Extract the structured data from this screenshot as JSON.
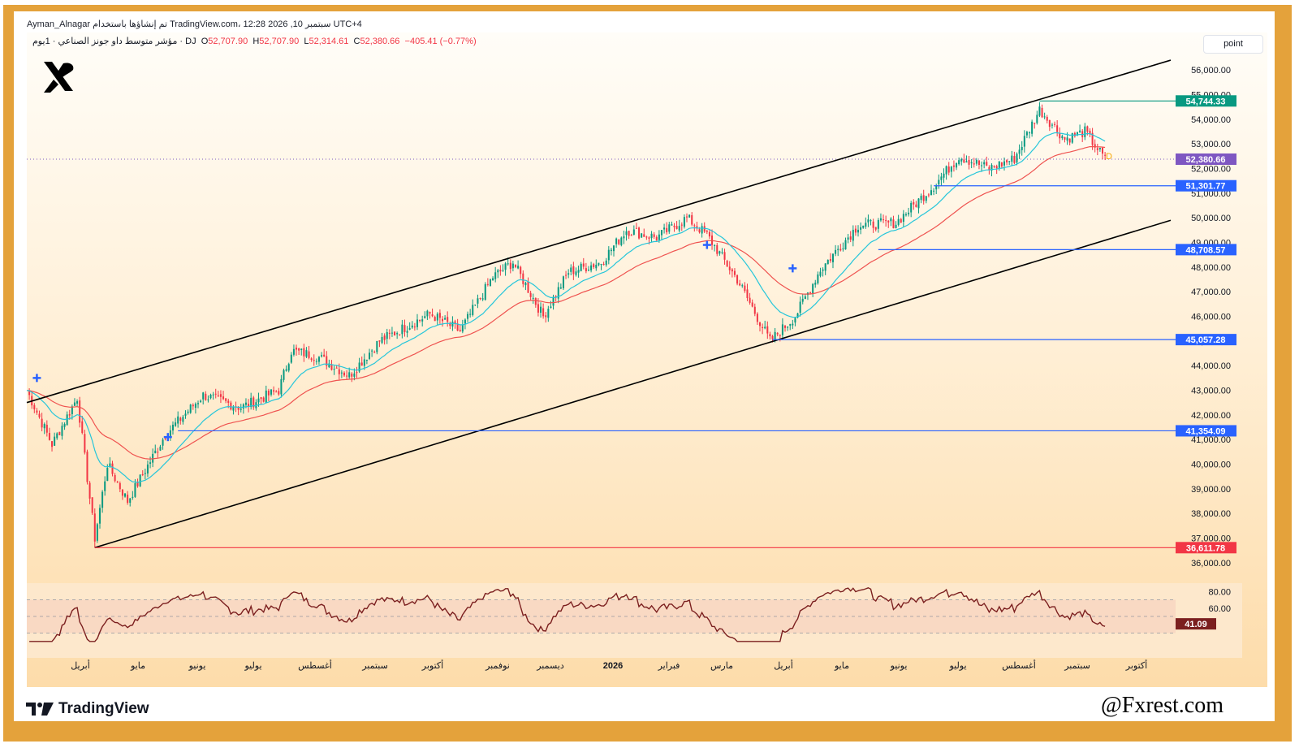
{
  "header": {
    "line1": "Ayman_Alnagar تم إنشاؤها باستخدام TradingView.com، 12:28 2026 ,10 سبتمبر UTC+4",
    "symbol": "مؤشر متوسط داو جونز الصناعي · 1يوم · DJ",
    "o_label": "O",
    "o_value": "52,707.90",
    "h_label": "H",
    "h_value": "52,707.90",
    "l_label": "L",
    "l_value": "52,314.61",
    "c_label": "C",
    "c_value": "52,380.66",
    "change": "−405.41 (−0.77%)"
  },
  "toolbar": {
    "scale_button": "point"
  },
  "branding": {
    "tv_text": "TradingView",
    "watermark": "@Fxrest.com"
  },
  "colors": {
    "frame": "#e4a23b",
    "up": "#089981",
    "down": "#f23645",
    "ema_fast": "#26c6da",
    "ema_slow": "#ef5350",
    "level": "#2962ff",
    "support": "#f23645"
  },
  "chart_data": {
    "type": "candlestick",
    "symbol": "DJ",
    "timeframe": "1D",
    "ylim": [
      36000,
      56500
    ],
    "y_ticks": [
      "56,000.00",
      "55,000.00",
      "54,000.00",
      "53,000.00",
      "52,000.00",
      "51,000.00",
      "50,000.00",
      "49,000.00",
      "48,000.00",
      "47,000.00",
      "46,000.00",
      "45,000.00",
      "44,000.00",
      "43,000.00",
      "42,000.00",
      "41,000.00",
      "40,000.00",
      "39,000.00",
      "38,000.00",
      "37,000.00",
      "36,000.00"
    ],
    "y_tick_values": [
      56000,
      55000,
      54000,
      53000,
      52000,
      51000,
      50000,
      49000,
      48000,
      47000,
      46000,
      45000,
      44000,
      43000,
      42000,
      41000,
      40000,
      39000,
      38000,
      37000,
      36000
    ],
    "x_ticks": [
      "أبريل",
      "مايو",
      "يونيو",
      "يوليو",
      "أغسطس",
      "سبتمبر",
      "أكتوبر",
      "نوفمبر",
      "ديسمبر",
      "2026",
      "فبراير",
      "مارس",
      "أبريل",
      "مايو",
      "يونيو",
      "يوليو",
      "أغسطس",
      "سبتمبر",
      "أكتوبر"
    ],
    "price_path": [
      {
        "t": 0,
        "p": 43000
      },
      {
        "t": 10,
        "p": 40800
      },
      {
        "t": 20,
        "p": 42700
      },
      {
        "t": 27,
        "p": 37000
      },
      {
        "t": 32,
        "p": 40000
      },
      {
        "t": 40,
        "p": 38500
      },
      {
        "t": 55,
        "p": 41200
      },
      {
        "t": 70,
        "p": 42800
      },
      {
        "t": 85,
        "p": 42300
      },
      {
        "t": 100,
        "p": 43000
      },
      {
        "t": 105,
        "p": 44600
      },
      {
        "t": 115,
        "p": 44400
      },
      {
        "t": 128,
        "p": 43600
      },
      {
        "t": 140,
        "p": 45000
      },
      {
        "t": 160,
        "p": 46100
      },
      {
        "t": 172,
        "p": 45400
      },
      {
        "t": 185,
        "p": 47600
      },
      {
        "t": 193,
        "p": 48200
      },
      {
        "t": 205,
        "p": 46000
      },
      {
        "t": 215,
        "p": 47800
      },
      {
        "t": 228,
        "p": 48200
      },
      {
        "t": 238,
        "p": 49500
      },
      {
        "t": 250,
        "p": 49200
      },
      {
        "t": 262,
        "p": 50000
      },
      {
        "t": 270,
        "p": 49300
      },
      {
        "t": 282,
        "p": 47500
      },
      {
        "t": 295,
        "p": 45000
      },
      {
        "t": 305,
        "p": 46000
      },
      {
        "t": 315,
        "p": 47900
      },
      {
        "t": 330,
        "p": 49700
      },
      {
        "t": 345,
        "p": 49800
      },
      {
        "t": 360,
        "p": 51300
      },
      {
        "t": 370,
        "p": 52500
      },
      {
        "t": 382,
        "p": 52000
      },
      {
        "t": 392,
        "p": 52400
      },
      {
        "t": 402,
        "p": 54400
      },
      {
        "t": 412,
        "p": 53200
      },
      {
        "t": 420,
        "p": 53500
      },
      {
        "t": 428,
        "p": 52380
      }
    ],
    "levels": [
      {
        "name": "resistance-high",
        "value": 54744.33,
        "label": "54,744.33",
        "color": "#089981"
      },
      {
        "name": "last-price",
        "value": 52380.66,
        "label": "52,380.66",
        "color": "#7e57c2"
      },
      {
        "name": "level-51301",
        "value": 51301.77,
        "label": "51,301.77",
        "color": "#2962ff"
      },
      {
        "name": "level-48708",
        "value": 48708.57,
        "label": "48,708.57",
        "color": "#2962ff"
      },
      {
        "name": "level-45057",
        "value": 45057.28,
        "label": "45,057.28",
        "color": "#2962ff"
      },
      {
        "name": "level-41354",
        "value": 41354.09,
        "label": "41,354.09",
        "color": "#2962ff"
      },
      {
        "name": "support-low",
        "value": 36611.78,
        "label": "36,611.78",
        "color": "#f23645"
      }
    ],
    "channel": {
      "upper": [
        {
          "t": 0,
          "p": 42500
        },
        {
          "t": 456,
          "p": 56400
        }
      ],
      "lower": [
        {
          "t": 27,
          "p": 36611.78
        },
        {
          "t": 456,
          "p": 49900
        }
      ]
    },
    "rsi": {
      "ylim": [
        10,
        90
      ],
      "ticks": [
        "80.00",
        "60.00"
      ],
      "tick_values": [
        80,
        60
      ],
      "bands": [
        70,
        50,
        30
      ],
      "last": "41.09"
    }
  }
}
